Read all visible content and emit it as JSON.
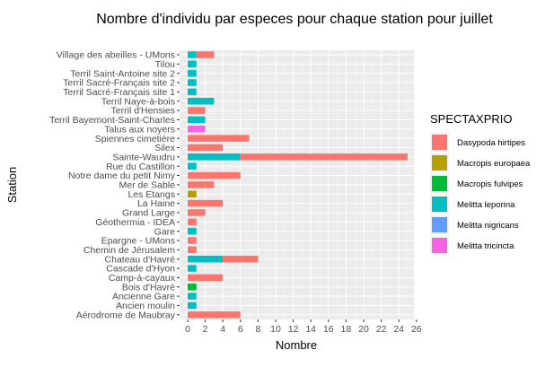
{
  "chart_data": {
    "type": "bar",
    "orientation": "horizontal",
    "stacked": true,
    "title": "Nombre d'individu par especes pour chaque station pour juillet",
    "xlabel": "Nombre",
    "ylabel": "Station",
    "xlim": [
      0,
      26
    ],
    "x_ticks": [
      "0",
      "2",
      "4",
      "6",
      "8",
      "10",
      "12",
      "14",
      "16",
      "18",
      "20",
      "22",
      "24",
      "26"
    ],
    "grid": true,
    "legend_title": "SPECTAXPRIO",
    "legend_position": "right",
    "categories": [
      "Village des abeilles - UMons",
      "Tilou",
      "Terril Saint-Antoine site 2",
      "Terril Sacré-Français site 2",
      "Terril Sacré-Français site 1",
      "Terril Naye-à-bois",
      "Terril d'Hensies",
      "Terril Bayemont-Saint-Charles",
      "Talus aux noyers",
      "Spiennes cimetière",
      "Silex",
      "Sainte-Waudru",
      "Rue du Castillon",
      "Notre dame du petit Nimy",
      "Mer de Sable",
      "Les Etangs",
      "La Haine",
      "Grand Large",
      "Géothermia - IDEA",
      "Gare",
      "Epargne - UMons",
      "Chemin de Jérusalem",
      "Chateau d'Havré",
      "Cascade d'Hyon",
      "Camp-à-cayaux",
      "Bois d'Havré",
      "Ancienne Gare",
      "Ancien moulin",
      "Aérodrome de Maubray"
    ],
    "series": [
      {
        "name": "Melitta leporina",
        "color": "#00BFC4",
        "values": [
          1,
          1,
          1,
          1,
          1,
          3,
          0,
          2,
          0,
          0,
          0,
          6,
          1,
          0,
          0,
          0,
          0,
          0,
          0,
          1,
          0,
          0,
          4,
          1,
          0,
          0,
          1,
          1,
          0
        ]
      },
      {
        "name": "Macropis europaea",
        "color": "#B79F00",
        "values": [
          0,
          0,
          0,
          0,
          0,
          0,
          0,
          0,
          0,
          0,
          0,
          0,
          0,
          0,
          0,
          1,
          0,
          0,
          0,
          0,
          0,
          0,
          0,
          0,
          0,
          0,
          0,
          0,
          0
        ]
      },
      {
        "name": "Macropis fulvipes",
        "color": "#00BA38",
        "values": [
          0,
          0,
          0,
          0,
          0,
          0,
          0,
          0,
          0,
          0,
          0,
          0,
          0,
          0,
          0,
          0,
          0,
          0,
          0,
          0,
          0,
          0,
          0,
          0,
          0,
          1,
          0,
          0,
          0
        ]
      },
      {
        "name": "Melitta nigricans",
        "color": "#619CFF",
        "values": [
          0,
          0,
          0,
          0,
          0,
          0,
          0,
          0,
          0,
          0,
          0,
          0,
          0,
          0,
          0,
          0,
          0,
          0,
          0,
          0,
          0,
          0,
          0,
          0,
          0,
          0,
          0,
          0,
          0
        ]
      },
      {
        "name": "Melitta tricincta",
        "color": "#F564E3",
        "values": [
          0,
          0,
          0,
          0,
          0,
          0,
          0,
          0,
          2,
          0,
          0,
          0,
          0,
          0,
          0,
          0,
          0,
          0,
          0,
          0,
          0,
          0,
          0,
          0,
          0,
          0,
          0,
          0,
          0
        ]
      },
      {
        "name": "Dasypoda hirtipes",
        "color": "#F8766D",
        "values": [
          2,
          0,
          0,
          0,
          0,
          0,
          2,
          0,
          0,
          7,
          4,
          19,
          0,
          6,
          3,
          0,
          4,
          2,
          1,
          0,
          1,
          1,
          4,
          0,
          4,
          0,
          0,
          0,
          6
        ]
      }
    ],
    "legend_order": [
      "Dasypoda hirtipes",
      "Macropis europaea",
      "Macropis fulvipes",
      "Melitta leporina",
      "Melitta nigricans",
      "Melitta tricincta"
    ]
  }
}
